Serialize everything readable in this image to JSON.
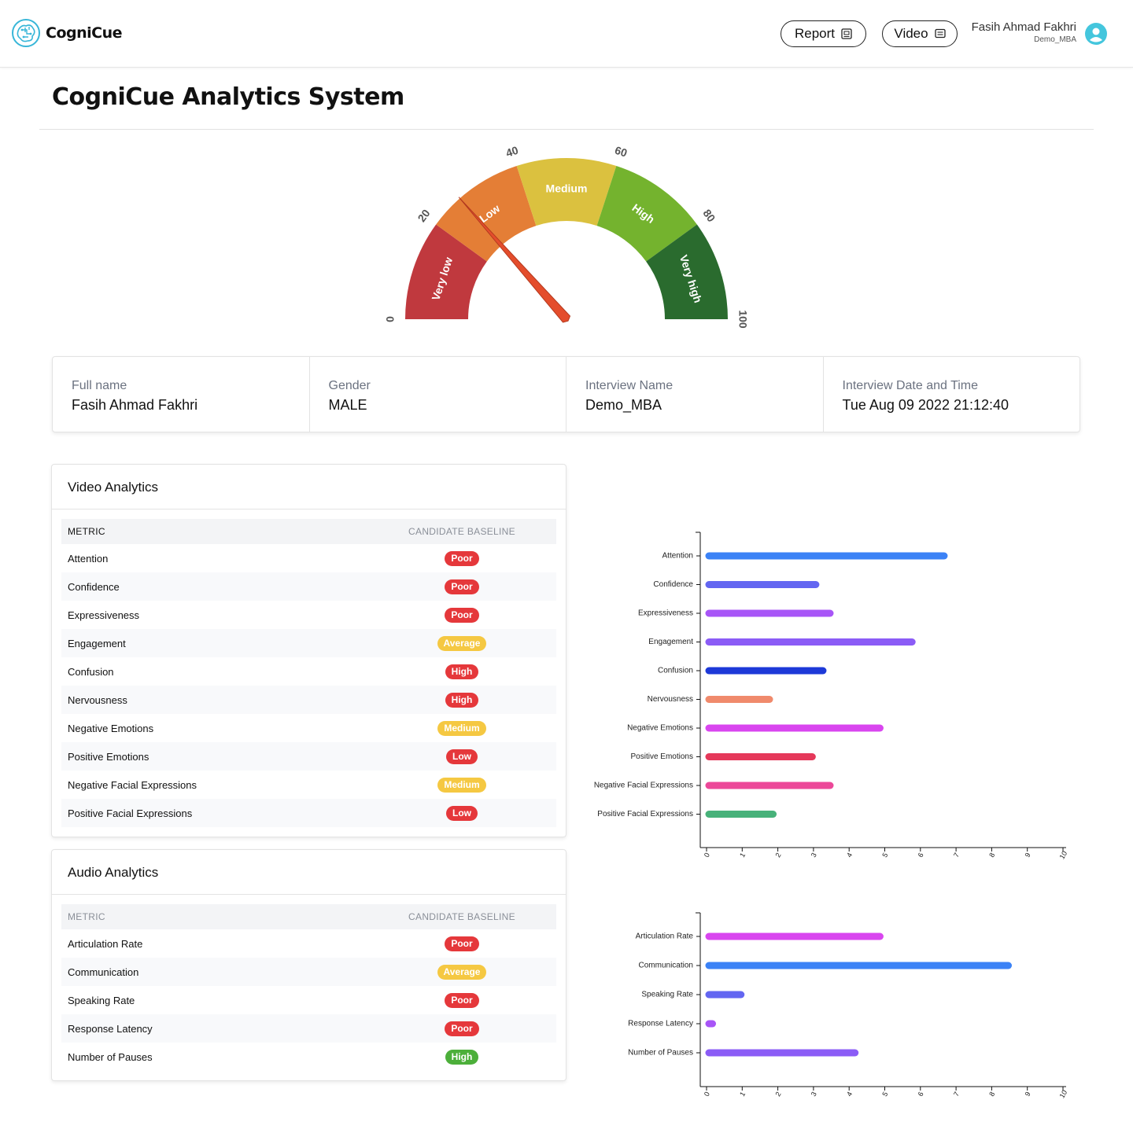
{
  "brand": {
    "name": "CogniCue"
  },
  "header": {
    "report_label": "Report",
    "video_label": "Video",
    "user_name": "Fasih Ahmad Fakhri",
    "user_sub": "Demo_MBA"
  },
  "page_title": "CogniCue Analytics System",
  "gauge": {
    "value": 27,
    "min": 0,
    "max": 100,
    "ticks": [
      "0",
      "20",
      "40",
      "60",
      "80",
      "100"
    ],
    "segments": [
      {
        "label": "Very low",
        "color": "#c0393e"
      },
      {
        "label": "Low",
        "color": "#e47e36"
      },
      {
        "label": "Medium",
        "color": "#dbc13f"
      },
      {
        "label": "High",
        "color": "#74b32e"
      },
      {
        "label": "Very high",
        "color": "#2a6b2e"
      }
    ],
    "needle_color": "#e44d2c"
  },
  "info": {
    "full_name_label": "Full name",
    "full_name": "Fasih Ahmad Fakhri",
    "gender_label": "Gender",
    "gender": "MALE",
    "interview_name_label": "Interview Name",
    "interview_name": "Demo_MBA",
    "datetime_label": "Interview Date and Time",
    "datetime": "Tue Aug 09 2022 21:12:40"
  },
  "video_analytics": {
    "title": "Video Analytics",
    "col_metric": "METRIC",
    "col_baseline": "CANDIDATE BASELINE",
    "rows": [
      {
        "metric": "Attention",
        "baseline": "Poor",
        "color": "#e5383b"
      },
      {
        "metric": "Confidence",
        "baseline": "Poor",
        "color": "#e5383b"
      },
      {
        "metric": "Expressiveness",
        "baseline": "Poor",
        "color": "#e5383b"
      },
      {
        "metric": "Engagement",
        "baseline": "Average",
        "color": "#f5c842"
      },
      {
        "metric": "Confusion",
        "baseline": "High",
        "color": "#e5383b"
      },
      {
        "metric": "Nervousness",
        "baseline": "High",
        "color": "#e5383b"
      },
      {
        "metric": "Negative Emotions",
        "baseline": "Medium",
        "color": "#f5c842"
      },
      {
        "metric": "Positive Emotions",
        "baseline": "Low",
        "color": "#e5383b"
      },
      {
        "metric": "Negative Facial Expressions",
        "baseline": "Medium",
        "color": "#f5c842"
      },
      {
        "metric": "Positive Facial Expressions",
        "baseline": "Low",
        "color": "#e5383b"
      }
    ]
  },
  "audio_analytics": {
    "title": "Audio Analytics",
    "col_metric": "METRIC",
    "col_baseline": "CANDIDATE BASELINE",
    "rows": [
      {
        "metric": "Articulation Rate",
        "baseline": "Poor",
        "color": "#e5383b"
      },
      {
        "metric": "Communication",
        "baseline": "Average",
        "color": "#f5c842"
      },
      {
        "metric": "Speaking Rate",
        "baseline": "Poor",
        "color": "#e5383b"
      },
      {
        "metric": "Response Latency",
        "baseline": "Poor",
        "color": "#e5383b"
      },
      {
        "metric": "Number of Pauses",
        "baseline": "High",
        "color": "#4caf3a"
      }
    ]
  },
  "chart_data": [
    {
      "type": "bar",
      "orientation": "horizontal",
      "categories": [
        "Attention",
        "Confidence",
        "Expressiveness",
        "Engagement",
        "Confusion",
        "Nervousness",
        "Negative Emotions",
        "Positive Emotions",
        "Negative Facial Expressions",
        "Positive Facial Expressions"
      ],
      "values": [
        6.6,
        3.0,
        3.4,
        5.7,
        3.2,
        1.7,
        4.8,
        2.9,
        3.4,
        1.8
      ],
      "colors": [
        "#3b82f6",
        "#6366f1",
        "#a855f7",
        "#8b5cf6",
        "#1d39d8",
        "#f08a6c",
        "#d946ef",
        "#e5385a",
        "#ec4899",
        "#48b27a"
      ],
      "xlim": [
        0,
        10
      ],
      "xticks": [
        "0",
        "1",
        "2",
        "3",
        "4",
        "5",
        "6",
        "7",
        "8",
        "9",
        "10"
      ],
      "title": "",
      "xlabel": "",
      "ylabel": ""
    },
    {
      "type": "bar",
      "orientation": "horizontal",
      "categories": [
        "Articulation Rate",
        "Communication",
        "Speaking Rate",
        "Response Latency",
        "Number of Pauses"
      ],
      "values": [
        4.8,
        8.4,
        0.9,
        0.1,
        4.1
      ],
      "colors": [
        "#d946ef",
        "#3b82f6",
        "#6366f1",
        "#a855f7",
        "#8b5cf6"
      ],
      "xlim": [
        0,
        10
      ],
      "xticks": [
        "0",
        "1",
        "2",
        "3",
        "4",
        "5",
        "6",
        "7",
        "8",
        "9",
        "10"
      ],
      "title": "",
      "xlabel": "",
      "ylabel": ""
    }
  ]
}
